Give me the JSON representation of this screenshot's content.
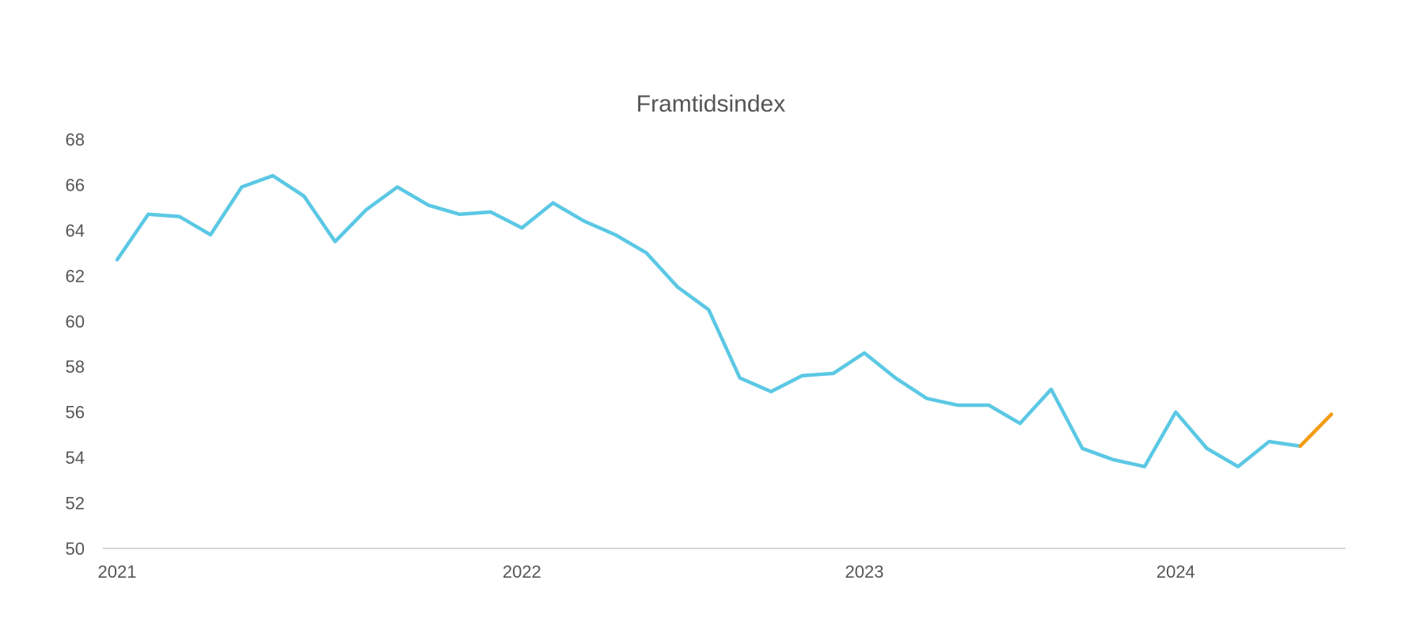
{
  "chart_data": {
    "type": "line",
    "title": "Framtidsindex",
    "xlabel": "",
    "ylabel": "",
    "ylim": [
      50,
      68
    ],
    "yticks": [
      50,
      52,
      54,
      56,
      58,
      60,
      62,
      64,
      66,
      68
    ],
    "xticks": [
      {
        "label": "2021",
        "index": 0
      },
      {
        "label": "2022",
        "index": 13
      },
      {
        "label": "2023",
        "index": 24
      },
      {
        "label": "2024",
        "index": 34
      }
    ],
    "grid": false,
    "colors": {
      "main": "#5BC8E4",
      "last": "#F39C12",
      "axis": "#c8c8c8",
      "text": "#555555"
    },
    "series": [
      {
        "values": [
          62.7,
          64.7,
          64.6,
          63.8,
          65.9,
          66.4,
          65.5,
          63.5,
          64.9,
          65.9,
          65.1,
          64.7,
          64.8,
          64.1,
          65.2,
          64.4,
          63.8,
          63.0,
          61.5,
          60.5,
          57.5,
          56.9,
          57.6,
          57.7,
          58.6,
          57.5,
          56.6,
          56.3,
          56.3,
          55.5,
          57.0,
          54.4,
          53.9,
          53.6,
          56.0,
          54.4,
          53.6,
          54.7,
          54.5
        ]
      },
      {
        "values": [
          54.5,
          55.9
        ],
        "start_index": 38
      }
    ]
  }
}
